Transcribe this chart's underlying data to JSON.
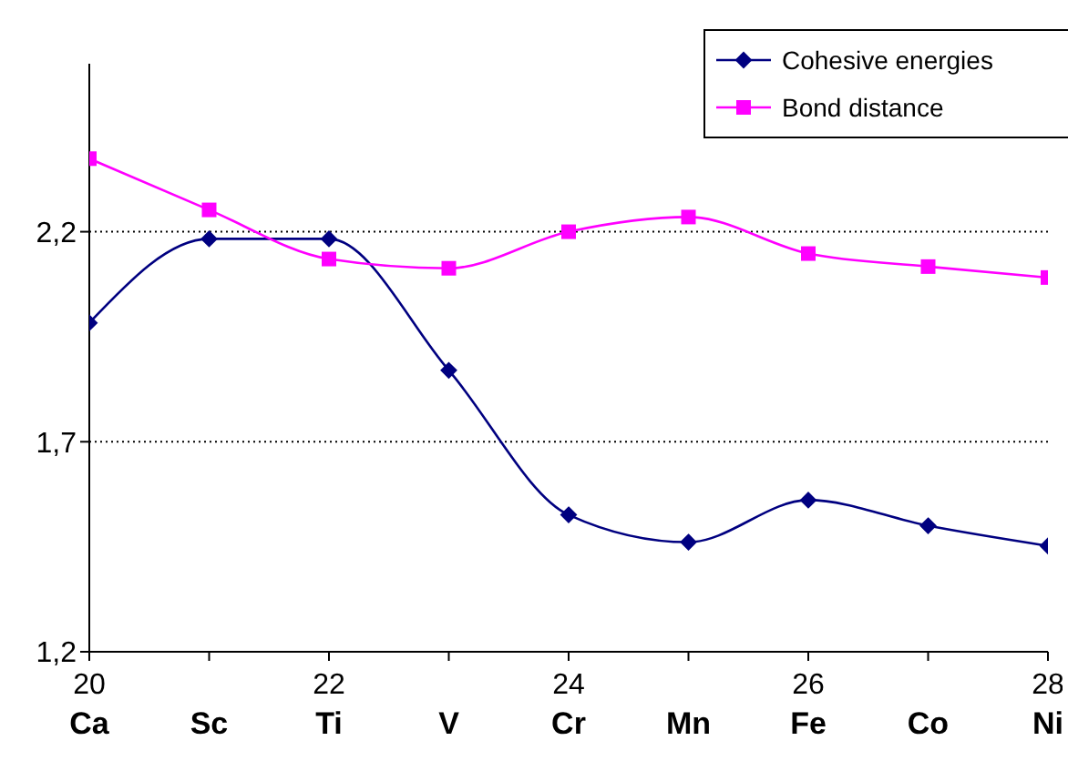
{
  "chart_data": {
    "type": "line",
    "x": [
      20,
      21,
      22,
      23,
      24,
      25,
      26,
      27,
      28
    ],
    "series": [
      {
        "name": "Cohesive energies",
        "color": "#000080",
        "marker": "diamond",
        "values": [
          1.983,
          2.183,
          2.183,
          1.87,
          1.526,
          1.461,
          1.561,
          1.5,
          1.452
        ]
      },
      {
        "name": "Bond distance",
        "color": "#ff00ff",
        "marker": "square",
        "values": [
          2.374,
          2.252,
          2.135,
          2.113,
          2.2,
          2.235,
          2.148,
          2.117,
          2.091
        ]
      }
    ],
    "xlim": [
      20,
      28
    ],
    "xticks": [
      {
        "value": 20,
        "label": "20\nCa"
      },
      {
        "value": 21,
        "label": "\nSc"
      },
      {
        "value": 22,
        "label": "22\nTi"
      },
      {
        "value": 23,
        "label": "\nV"
      },
      {
        "value": 24,
        "label": "24\nCr"
      },
      {
        "value": 25,
        "label": "\nMn"
      },
      {
        "value": 26,
        "label": "26\nFe"
      },
      {
        "value": 27,
        "label": "\nCo"
      },
      {
        "value": 28,
        "label": "28\nNi"
      }
    ],
    "ylim": [
      1.2,
      2.6
    ],
    "yticks": [
      {
        "value": 1.2,
        "label": "1,2"
      },
      {
        "value": 1.7,
        "label": "1,7"
      },
      {
        "value": 2.2,
        "label": "2,2"
      }
    ],
    "grid": "y",
    "legend": "top right"
  }
}
